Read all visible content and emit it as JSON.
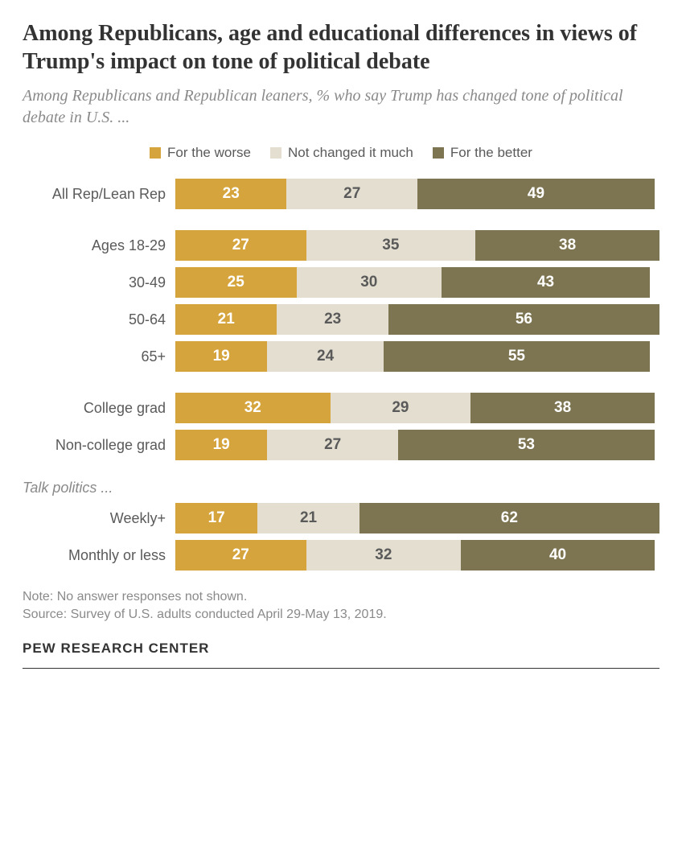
{
  "title": "Among Republicans, age and educational differences in views of Trump's impact on tone of political debate",
  "subtitle": "Among Republicans and Republican leaners, % who say Trump has changed tone of political debate in U.S. ...",
  "legend": {
    "worse": "For the worse",
    "nochange": "Not changed it much",
    "better": "For the better"
  },
  "colors": {
    "worse": "#d5a43c",
    "nochange": "#e3ded0",
    "better": "#7d7552",
    "pad": "#ffffff",
    "text_on_worse": "#ffffff",
    "text_on_nochange": "#5a5a5a",
    "text_on_better": "#ffffff"
  },
  "fontsizes": {
    "title": 28,
    "subtitle": 20,
    "legend": 17,
    "row_label": 18,
    "seg_value": 19,
    "group_header": 18,
    "note": 16,
    "brand": 17
  },
  "groups": [
    {
      "header": null,
      "rows": [
        {
          "label": "All Rep/Lean Rep",
          "worse": 23,
          "nochange": 27,
          "better": 49
        }
      ]
    },
    {
      "header": null,
      "rows": [
        {
          "label": "Ages 18-29",
          "worse": 27,
          "nochange": 35,
          "better": 38
        },
        {
          "label": "30-49",
          "worse": 25,
          "nochange": 30,
          "better": 43
        },
        {
          "label": "50-64",
          "worse": 21,
          "nochange": 23,
          "better": 56
        },
        {
          "label": "65+",
          "worse": 19,
          "nochange": 24,
          "better": 55
        }
      ]
    },
    {
      "header": null,
      "rows": [
        {
          "label": "College grad",
          "worse": 32,
          "nochange": 29,
          "better": 38
        },
        {
          "label": "Non-college grad",
          "worse": 19,
          "nochange": 27,
          "better": 53
        }
      ]
    },
    {
      "header": "Talk politics ...",
      "rows": [
        {
          "label": "Weekly+",
          "worse": 17,
          "nochange": 21,
          "better": 62
        },
        {
          "label": "Monthly or less",
          "worse": 27,
          "nochange": 32,
          "better": 40
        }
      ]
    }
  ],
  "note": "Note: No answer responses not shown.",
  "source": "Source: Survey of U.S. adults conducted April 29-May 13, 2019.",
  "brand": "PEW RESEARCH CENTER"
}
